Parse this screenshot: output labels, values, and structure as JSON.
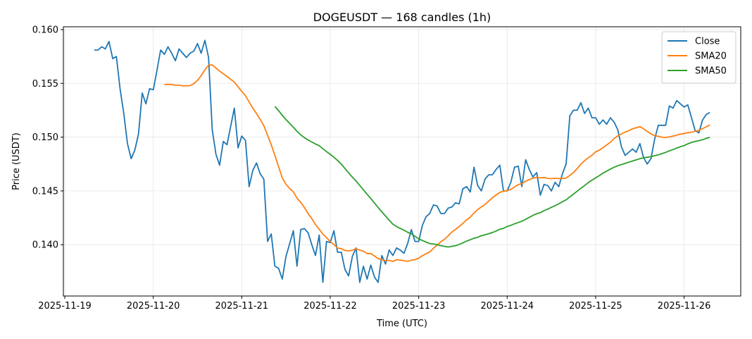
{
  "chart_data": {
    "type": "line",
    "title": "DOGEUSDT — 168 candles (1h)",
    "xlabel": "Time (UTC)",
    "ylabel": "Price (USDT)",
    "start": "2025-11-19T08:00:00Z",
    "interval_hours": 1,
    "x_ticks": [
      "2025-11-19",
      "2025-11-20",
      "2025-11-21",
      "2025-11-22",
      "2025-11-23",
      "2025-11-24",
      "2025-11-25",
      "2025-11-26"
    ],
    "y_ticks": [
      "0.140",
      "0.145",
      "0.150",
      "0.155",
      "0.160"
    ],
    "ylim": [
      0.13523,
      0.16026
    ],
    "xlim_days": [
      -0.016,
      7.64
    ],
    "grid": true,
    "legend_position": "top-right",
    "series": [
      {
        "name": "Close",
        "color": "#1f77b4",
        "values": [
          0.1581,
          0.1581,
          0.1584,
          0.1582,
          0.1589,
          0.1573,
          0.1575,
          0.1545,
          0.1522,
          0.1494,
          0.148,
          0.1488,
          0.1503,
          0.1541,
          0.1531,
          0.1545,
          0.1544,
          0.1562,
          0.1581,
          0.1577,
          0.1584,
          0.1578,
          0.1571,
          0.1582,
          0.1578,
          0.1574,
          0.1578,
          0.158,
          0.1587,
          0.1578,
          0.159,
          0.1574,
          0.1507,
          0.1484,
          0.1474,
          0.1496,
          0.1493,
          0.151,
          0.1527,
          0.149,
          0.1501,
          0.1497,
          0.1454,
          0.1469,
          0.1476,
          0.1466,
          0.1461,
          0.1403,
          0.141,
          0.138,
          0.1378,
          0.1368,
          0.1389,
          0.1401,
          0.1413,
          0.138,
          0.1414,
          0.1415,
          0.1411,
          0.14,
          0.139,
          0.1409,
          0.1365,
          0.1403,
          0.1402,
          0.1413,
          0.1393,
          0.1393,
          0.1377,
          0.1371,
          0.1389,
          0.1397,
          0.1365,
          0.138,
          0.1368,
          0.1381,
          0.137,
          0.1365,
          0.139,
          0.1382,
          0.1395,
          0.139,
          0.1397,
          0.1395,
          0.1392,
          0.1401,
          0.1414,
          0.1403,
          0.1403,
          0.1418,
          0.1426,
          0.1429,
          0.1437,
          0.1436,
          0.1429,
          0.1429,
          0.1434,
          0.1435,
          0.1439,
          0.1438,
          0.1452,
          0.1454,
          0.1449,
          0.1472,
          0.1455,
          0.145,
          0.1461,
          0.1465,
          0.1465,
          0.147,
          0.1474,
          0.145,
          0.145,
          0.1458,
          0.1472,
          0.1473,
          0.1454,
          0.1479,
          0.147,
          0.1463,
          0.1467,
          0.1446,
          0.1456,
          0.1455,
          0.145,
          0.1458,
          0.1454,
          0.1466,
          0.1475,
          0.152,
          0.1525,
          0.1525,
          0.1532,
          0.1522,
          0.1527,
          0.1518,
          0.1518,
          0.1512,
          0.1516,
          0.1512,
          0.1518,
          0.1514,
          0.1507,
          0.1491,
          0.1483,
          0.1486,
          0.1489,
          0.1486,
          0.1494,
          0.1481,
          0.1475,
          0.148,
          0.1498,
          0.1511,
          0.1511,
          0.1511,
          0.1529,
          0.1527,
          0.1534,
          0.1531,
          0.1528,
          0.153,
          0.1518,
          0.1506,
          0.1504,
          0.1516,
          0.1521,
          0.1523
        ]
      },
      {
        "name": "SMA20",
        "color": "#ff7f0e",
        "window": 20
      },
      {
        "name": "SMA50",
        "color": "#2ca02c",
        "window": 50
      }
    ]
  }
}
